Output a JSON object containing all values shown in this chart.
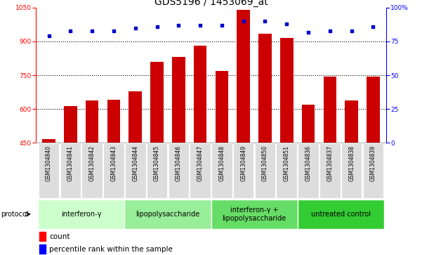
{
  "title": "GDS5196 / 1453069_at",
  "samples": [
    "GSM1304840",
    "GSM1304841",
    "GSM1304842",
    "GSM1304843",
    "GSM1304844",
    "GSM1304845",
    "GSM1304846",
    "GSM1304847",
    "GSM1304848",
    "GSM1304849",
    "GSM1304850",
    "GSM1304851",
    "GSM1304836",
    "GSM1304837",
    "GSM1304838",
    "GSM1304839"
  ],
  "counts": [
    468,
    612,
    638,
    640,
    680,
    810,
    832,
    880,
    770,
    1040,
    935,
    915,
    620,
    745,
    638,
    745
  ],
  "percentile_ranks": [
    79,
    83,
    83,
    83,
    85,
    86,
    87,
    87,
    87,
    90,
    90,
    88,
    82,
    83,
    83,
    86
  ],
  "ylim_left": [
    450,
    1050
  ],
  "ylim_right": [
    0,
    100
  ],
  "yticks_left": [
    450,
    600,
    750,
    900,
    1050
  ],
  "yticks_right": [
    0,
    25,
    50,
    75,
    100
  ],
  "bar_color": "#cc0000",
  "dot_color": "#0000cc",
  "grid_values": [
    600,
    750,
    900
  ],
  "groups": [
    {
      "label": "interferon-γ",
      "start": 0,
      "end": 4,
      "color": "#ccffcc"
    },
    {
      "label": "lipopolysaccharide",
      "start": 4,
      "end": 8,
      "color": "#99ee99"
    },
    {
      "label": "interferon-γ +\nlipopolysaccharide",
      "start": 8,
      "end": 12,
      "color": "#66dd66"
    },
    {
      "label": "untreated control",
      "start": 12,
      "end": 16,
      "color": "#33cc33"
    }
  ],
  "xtick_bg": "#dddddd",
  "title_fontsize": 10,
  "tick_fontsize": 6.5,
  "sample_fontsize": 5.5,
  "group_fontsize": 7,
  "legend_fontsize": 7.5
}
